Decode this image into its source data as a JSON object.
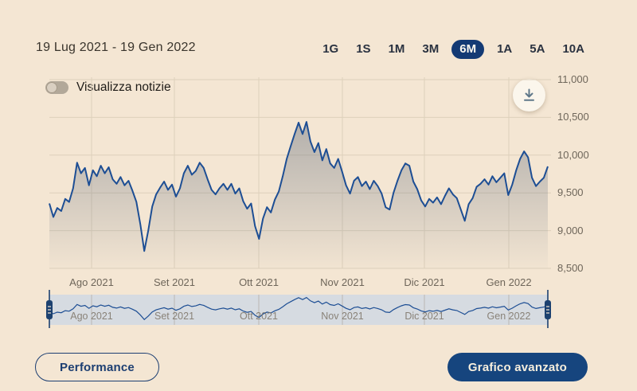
{
  "header": {
    "date_range": "19 Lug 2021 - 19 Gen 2022"
  },
  "range_selector": {
    "options": [
      "1G",
      "1S",
      "1M",
      "3M",
      "6M",
      "1A",
      "5A",
      "10A"
    ],
    "selected": "6M"
  },
  "news_toggle": {
    "label": "Visualizza notizie",
    "state": "off"
  },
  "export_button": {
    "icon": "download-icon"
  },
  "colors": {
    "background": "#f4e6d3",
    "line": "#1d4e94",
    "navy": "#143a74",
    "grid": "#ddd0bb",
    "navigator_band": "#d6dbe1",
    "area_fill": "rgba(100,110,125,0.45)"
  },
  "chart_data": {
    "type": "line",
    "title": "",
    "xlabel": "",
    "ylabel": "",
    "x_range": "19 Lug 2021 - 19 Gen 2022",
    "x_axis_labels": [
      "Ago 2021",
      "Set 2021",
      "Ott 2021",
      "Nov 2021",
      "Dic 2021",
      "Gen 2022"
    ],
    "y_ticks": [
      "11,000",
      "10,500",
      "10,000",
      "9,500",
      "9,000",
      "8,500"
    ],
    "y_tick_values": [
      11000,
      10500,
      10000,
      9500,
      9000,
      8500
    ],
    "ylim": [
      8500,
      11000
    ],
    "grid": true,
    "legend": "none",
    "values": [
      9360,
      9180,
      9300,
      9260,
      9420,
      9380,
      9560,
      9900,
      9760,
      9830,
      9600,
      9800,
      9720,
      9860,
      9760,
      9840,
      9680,
      9620,
      9710,
      9600,
      9660,
      9530,
      9380,
      9080,
      8730,
      9000,
      9320,
      9480,
      9570,
      9650,
      9540,
      9610,
      9450,
      9560,
      9760,
      9860,
      9740,
      9790,
      9900,
      9830,
      9680,
      9540,
      9480,
      9560,
      9620,
      9540,
      9620,
      9490,
      9560,
      9390,
      9290,
      9360,
      9060,
      8890,
      9160,
      9310,
      9240,
      9410,
      9520,
      9720,
      9950,
      10120,
      10280,
      10430,
      10280,
      10440,
      10180,
      10040,
      10160,
      9930,
      10080,
      9890,
      9830,
      9950,
      9780,
      9600,
      9490,
      9660,
      9710,
      9590,
      9650,
      9550,
      9660,
      9590,
      9490,
      9310,
      9280,
      9500,
      9660,
      9800,
      9890,
      9860,
      9650,
      9550,
      9400,
      9320,
      9420,
      9370,
      9440,
      9350,
      9460,
      9560,
      9480,
      9430,
      9280,
      9130,
      9350,
      9430,
      9580,
      9620,
      9680,
      9610,
      9720,
      9640,
      9700,
      9760,
      9470,
      9610,
      9800,
      9950,
      10050,
      9970,
      9700,
      9590,
      9650,
      9700,
      9850
    ]
  },
  "navigator": {
    "labels": [
      "Ago 2021",
      "Set 2021",
      "Ott 2021",
      "Nov 2021",
      "Dic 2021",
      "Gen 2022"
    ]
  },
  "footer": {
    "performance_label": "Performance",
    "advanced_label": "Grafico avanzato"
  }
}
